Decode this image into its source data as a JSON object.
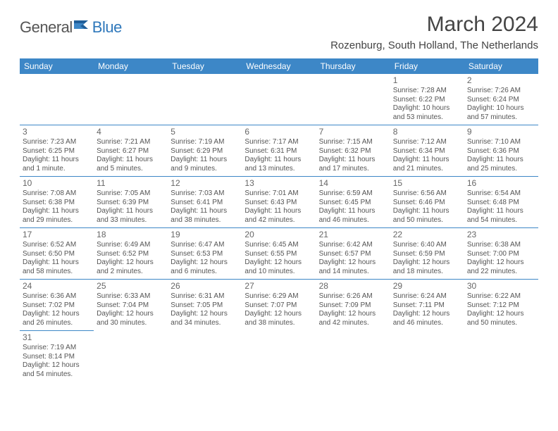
{
  "brand": {
    "part1": "General",
    "part2": "Blue"
  },
  "title": "March 2024",
  "location": "Rozenburg, South Holland, The Netherlands",
  "colors": {
    "header_bg": "#3d87c7",
    "header_fg": "#ffffff",
    "cell_border": "#3d87c7",
    "text": "#555555",
    "brand_gray": "#555555",
    "brand_blue": "#2f78bb"
  },
  "fonts": {
    "title_size": 30,
    "location_size": 15,
    "dayheader_size": 12,
    "daynum_size": 12,
    "body_size": 10
  },
  "day_headers": [
    "Sunday",
    "Monday",
    "Tuesday",
    "Wednesday",
    "Thursday",
    "Friday",
    "Saturday"
  ],
  "weeks": [
    [
      null,
      null,
      null,
      null,
      null,
      {
        "n": "1",
        "sr": "Sunrise: 7:28 AM",
        "ss": "Sunset: 6:22 PM",
        "dl": "Daylight: 10 hours and 53 minutes."
      },
      {
        "n": "2",
        "sr": "Sunrise: 7:26 AM",
        "ss": "Sunset: 6:24 PM",
        "dl": "Daylight: 10 hours and 57 minutes."
      }
    ],
    [
      {
        "n": "3",
        "sr": "Sunrise: 7:23 AM",
        "ss": "Sunset: 6:25 PM",
        "dl": "Daylight: 11 hours and 1 minute."
      },
      {
        "n": "4",
        "sr": "Sunrise: 7:21 AM",
        "ss": "Sunset: 6:27 PM",
        "dl": "Daylight: 11 hours and 5 minutes."
      },
      {
        "n": "5",
        "sr": "Sunrise: 7:19 AM",
        "ss": "Sunset: 6:29 PM",
        "dl": "Daylight: 11 hours and 9 minutes."
      },
      {
        "n": "6",
        "sr": "Sunrise: 7:17 AM",
        "ss": "Sunset: 6:31 PM",
        "dl": "Daylight: 11 hours and 13 minutes."
      },
      {
        "n": "7",
        "sr": "Sunrise: 7:15 AM",
        "ss": "Sunset: 6:32 PM",
        "dl": "Daylight: 11 hours and 17 minutes."
      },
      {
        "n": "8",
        "sr": "Sunrise: 7:12 AM",
        "ss": "Sunset: 6:34 PM",
        "dl": "Daylight: 11 hours and 21 minutes."
      },
      {
        "n": "9",
        "sr": "Sunrise: 7:10 AM",
        "ss": "Sunset: 6:36 PM",
        "dl": "Daylight: 11 hours and 25 minutes."
      }
    ],
    [
      {
        "n": "10",
        "sr": "Sunrise: 7:08 AM",
        "ss": "Sunset: 6:38 PM",
        "dl": "Daylight: 11 hours and 29 minutes."
      },
      {
        "n": "11",
        "sr": "Sunrise: 7:05 AM",
        "ss": "Sunset: 6:39 PM",
        "dl": "Daylight: 11 hours and 33 minutes."
      },
      {
        "n": "12",
        "sr": "Sunrise: 7:03 AM",
        "ss": "Sunset: 6:41 PM",
        "dl": "Daylight: 11 hours and 38 minutes."
      },
      {
        "n": "13",
        "sr": "Sunrise: 7:01 AM",
        "ss": "Sunset: 6:43 PM",
        "dl": "Daylight: 11 hours and 42 minutes."
      },
      {
        "n": "14",
        "sr": "Sunrise: 6:59 AM",
        "ss": "Sunset: 6:45 PM",
        "dl": "Daylight: 11 hours and 46 minutes."
      },
      {
        "n": "15",
        "sr": "Sunrise: 6:56 AM",
        "ss": "Sunset: 6:46 PM",
        "dl": "Daylight: 11 hours and 50 minutes."
      },
      {
        "n": "16",
        "sr": "Sunrise: 6:54 AM",
        "ss": "Sunset: 6:48 PM",
        "dl": "Daylight: 11 hours and 54 minutes."
      }
    ],
    [
      {
        "n": "17",
        "sr": "Sunrise: 6:52 AM",
        "ss": "Sunset: 6:50 PM",
        "dl": "Daylight: 11 hours and 58 minutes."
      },
      {
        "n": "18",
        "sr": "Sunrise: 6:49 AM",
        "ss": "Sunset: 6:52 PM",
        "dl": "Daylight: 12 hours and 2 minutes."
      },
      {
        "n": "19",
        "sr": "Sunrise: 6:47 AM",
        "ss": "Sunset: 6:53 PM",
        "dl": "Daylight: 12 hours and 6 minutes."
      },
      {
        "n": "20",
        "sr": "Sunrise: 6:45 AM",
        "ss": "Sunset: 6:55 PM",
        "dl": "Daylight: 12 hours and 10 minutes."
      },
      {
        "n": "21",
        "sr": "Sunrise: 6:42 AM",
        "ss": "Sunset: 6:57 PM",
        "dl": "Daylight: 12 hours and 14 minutes."
      },
      {
        "n": "22",
        "sr": "Sunrise: 6:40 AM",
        "ss": "Sunset: 6:59 PM",
        "dl": "Daylight: 12 hours and 18 minutes."
      },
      {
        "n": "23",
        "sr": "Sunrise: 6:38 AM",
        "ss": "Sunset: 7:00 PM",
        "dl": "Daylight: 12 hours and 22 minutes."
      }
    ],
    [
      {
        "n": "24",
        "sr": "Sunrise: 6:36 AM",
        "ss": "Sunset: 7:02 PM",
        "dl": "Daylight: 12 hours and 26 minutes."
      },
      {
        "n": "25",
        "sr": "Sunrise: 6:33 AM",
        "ss": "Sunset: 7:04 PM",
        "dl": "Daylight: 12 hours and 30 minutes."
      },
      {
        "n": "26",
        "sr": "Sunrise: 6:31 AM",
        "ss": "Sunset: 7:05 PM",
        "dl": "Daylight: 12 hours and 34 minutes."
      },
      {
        "n": "27",
        "sr": "Sunrise: 6:29 AM",
        "ss": "Sunset: 7:07 PM",
        "dl": "Daylight: 12 hours and 38 minutes."
      },
      {
        "n": "28",
        "sr": "Sunrise: 6:26 AM",
        "ss": "Sunset: 7:09 PM",
        "dl": "Daylight: 12 hours and 42 minutes."
      },
      {
        "n": "29",
        "sr": "Sunrise: 6:24 AM",
        "ss": "Sunset: 7:11 PM",
        "dl": "Daylight: 12 hours and 46 minutes."
      },
      {
        "n": "30",
        "sr": "Sunrise: 6:22 AM",
        "ss": "Sunset: 7:12 PM",
        "dl": "Daylight: 12 hours and 50 minutes."
      }
    ],
    [
      {
        "n": "31",
        "sr": "Sunrise: 7:19 AM",
        "ss": "Sunset: 8:14 PM",
        "dl": "Daylight: 12 hours and 54 minutes."
      },
      null,
      null,
      null,
      null,
      null,
      null
    ]
  ]
}
